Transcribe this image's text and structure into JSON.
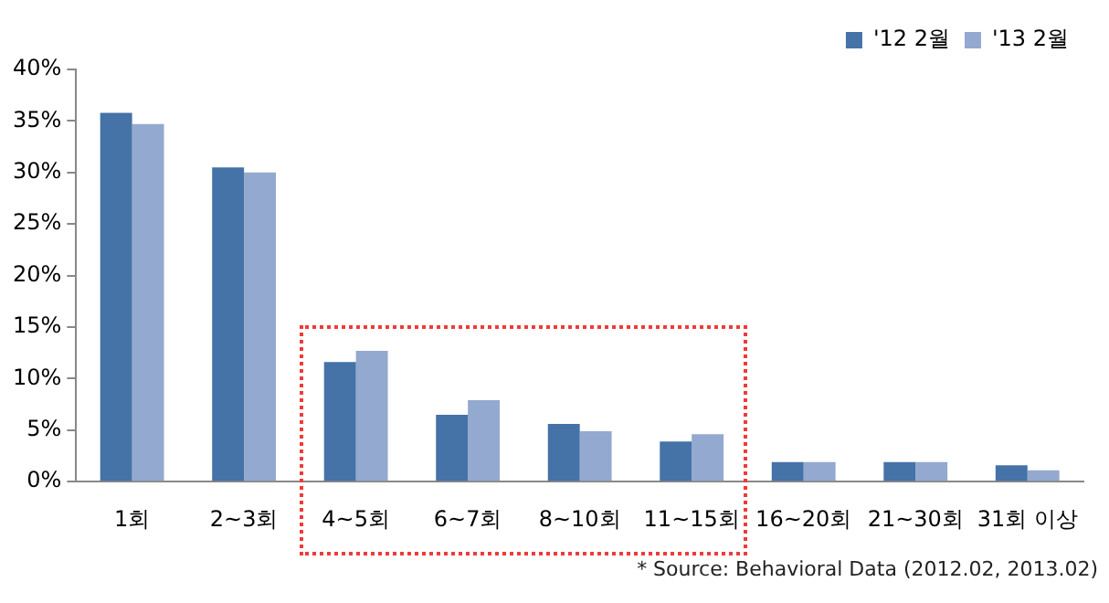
{
  "chart_data": {
    "type": "bar",
    "categories": [
      "1회",
      "2~3회",
      "4~5회",
      "6~7회",
      "8~10회",
      "11~15회",
      "16~20회",
      "21~30회",
      "31회 이상"
    ],
    "series": [
      {
        "name": "'12 2월",
        "color": "#4572a7",
        "values": [
          35.8,
          30.5,
          11.6,
          6.5,
          5.6,
          3.9,
          1.9,
          1.9,
          1.6
        ]
      },
      {
        "name": "'13 2월",
        "color": "#93a9cf",
        "values": [
          34.7,
          30.0,
          12.7,
          7.9,
          4.9,
          4.6,
          1.9,
          1.9,
          1.1
        ]
      }
    ],
    "ylim": [
      0,
      40
    ],
    "yticks": [
      {
        "value": 0,
        "label": "0%"
      },
      {
        "value": 5,
        "label": "5%"
      },
      {
        "value": 10,
        "label": "10%"
      },
      {
        "value": 15,
        "label": "15%"
      },
      {
        "value": 20,
        "label": "20%"
      },
      {
        "value": 25,
        "label": "25%"
      },
      {
        "value": 30,
        "label": "30%"
      },
      {
        "value": 35,
        "label": "35%"
      },
      {
        "value": 40,
        "label": "40%"
      }
    ],
    "grid": false,
    "legend": "top right",
    "annotations": [
      "* Source: Behavioral Data (2012.02, 2013.02)"
    ]
  }
}
